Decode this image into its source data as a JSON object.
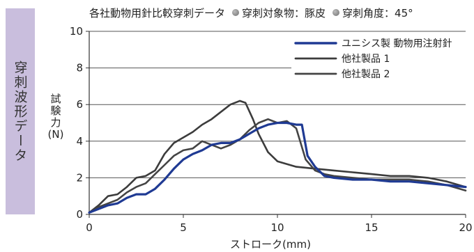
{
  "side_tab": "穿刺波形データ",
  "header": {
    "title": "各社動物用針比較穿刺データ",
    "meta1": "穿刺対象物：豚皮",
    "meta2": "穿刺角度：45°"
  },
  "chart_data": {
    "type": "line",
    "title": "各社動物用針比較穿刺データ",
    "xlabel": "ストローク(mm)",
    "ylabel_lines": [
      "試",
      "験",
      "力",
      "(N)"
    ],
    "xlim": [
      0,
      20
    ],
    "ylim": [
      0,
      10
    ],
    "xticks": [
      "0",
      "5",
      "10",
      "15",
      "20"
    ],
    "yticks": [
      "0",
      "2",
      "4",
      "6",
      "8",
      "10"
    ],
    "grid": "horizontal",
    "legend_position": "top-right",
    "series": [
      {
        "name": "ユニシス製 動物用注射針",
        "color": "#1f3a93",
        "x": [
          0,
          0.5,
          1,
          1.5,
          2,
          2.5,
          3,
          3.5,
          4,
          4.5,
          5,
          5.5,
          6,
          6.5,
          7,
          7.5,
          8,
          8.5,
          9,
          9.5,
          10,
          10.5,
          11,
          11.3,
          11.6,
          12,
          12.5,
          13,
          14,
          15,
          16,
          17,
          18,
          19,
          20
        ],
        "y": [
          0.1,
          0.3,
          0.5,
          0.6,
          0.9,
          1.1,
          1.1,
          1.4,
          1.9,
          2.5,
          3.0,
          3.3,
          3.5,
          3.8,
          3.9,
          3.9,
          4.1,
          4.4,
          4.7,
          4.9,
          5.0,
          5.0,
          4.9,
          4.9,
          3.2,
          2.6,
          2.1,
          2.0,
          1.9,
          1.9,
          1.8,
          1.8,
          1.7,
          1.6,
          1.5
        ]
      },
      {
        "name": "他社製品 1",
        "color": "#3c3c3c",
        "x": [
          0,
          0.5,
          1,
          1.5,
          2,
          2.5,
          3,
          3.5,
          4,
          4.5,
          5,
          5.5,
          6,
          6.5,
          7,
          7.5,
          8,
          8.3,
          8.7,
          9,
          9.5,
          10,
          11,
          12,
          13,
          14,
          15,
          16,
          17,
          18,
          19,
          20
        ],
        "y": [
          0.1,
          0.5,
          1.0,
          1.1,
          1.5,
          2.0,
          2.1,
          2.4,
          3.3,
          3.9,
          4.2,
          4.5,
          4.9,
          5.2,
          5.6,
          6.0,
          6.2,
          6.1,
          5.2,
          4.4,
          3.4,
          2.9,
          2.6,
          2.5,
          2.4,
          2.3,
          2.2,
          2.1,
          2.1,
          2.0,
          1.8,
          1.5
        ]
      },
      {
        "name": "他社製品 2",
        "color": "#444444",
        "x": [
          0,
          0.5,
          1,
          1.5,
          2,
          2.5,
          3,
          3.5,
          4,
          4.5,
          5,
          5.5,
          6,
          6.5,
          7,
          7.5,
          8,
          8.5,
          9,
          9.5,
          10,
          10.5,
          11,
          11.5,
          12,
          12.5,
          13,
          14,
          15,
          16,
          17,
          18,
          19,
          20
        ],
        "y": [
          0.1,
          0.4,
          0.6,
          0.8,
          1.2,
          1.5,
          1.7,
          2.2,
          2.7,
          3.2,
          3.5,
          3.6,
          4.0,
          3.8,
          3.6,
          3.8,
          4.1,
          4.6,
          5.0,
          5.2,
          5.0,
          5.1,
          4.7,
          3.0,
          2.4,
          2.2,
          2.1,
          2.0,
          1.9,
          1.9,
          1.9,
          1.8,
          1.6,
          1.3
        ]
      }
    ]
  }
}
